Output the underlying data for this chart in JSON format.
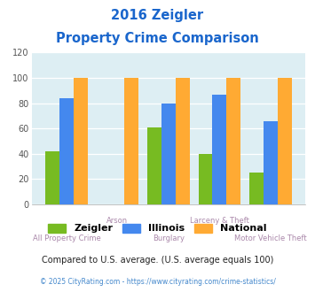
{
  "title_line1": "2016 Zeigler",
  "title_line2": "Property Crime Comparison",
  "categories": [
    "All Property Crime",
    "Arson",
    "Burglary",
    "Larceny & Theft",
    "Motor Vehicle Theft"
  ],
  "zeigler": [
    42,
    0,
    61,
    40,
    25
  ],
  "illinois": [
    84,
    0,
    80,
    87,
    66
  ],
  "national": [
    100,
    100,
    100,
    100,
    100
  ],
  "zeigler_color": "#77bb22",
  "illinois_color": "#4488ee",
  "national_color": "#ffaa33",
  "ylim": [
    0,
    120
  ],
  "yticks": [
    0,
    20,
    40,
    60,
    80,
    100,
    120
  ],
  "bg_color": "#ddeef3",
  "title_color": "#1a66cc",
  "xlabel_color": "#aa88aa",
  "legend_labels": [
    "Zeigler",
    "Illinois",
    "National"
  ],
  "legend_text_color": "#000000",
  "footnote1": "Compared to U.S. average. (U.S. average equals 100)",
  "footnote2": "© 2025 CityRating.com - https://www.cityrating.com/crime-statistics/",
  "footnote1_color": "#222222",
  "footnote2_color": "#4488cc",
  "bar_width": 0.22,
  "group_positions": [
    0.55,
    1.35,
    2.15,
    2.95,
    3.75
  ]
}
